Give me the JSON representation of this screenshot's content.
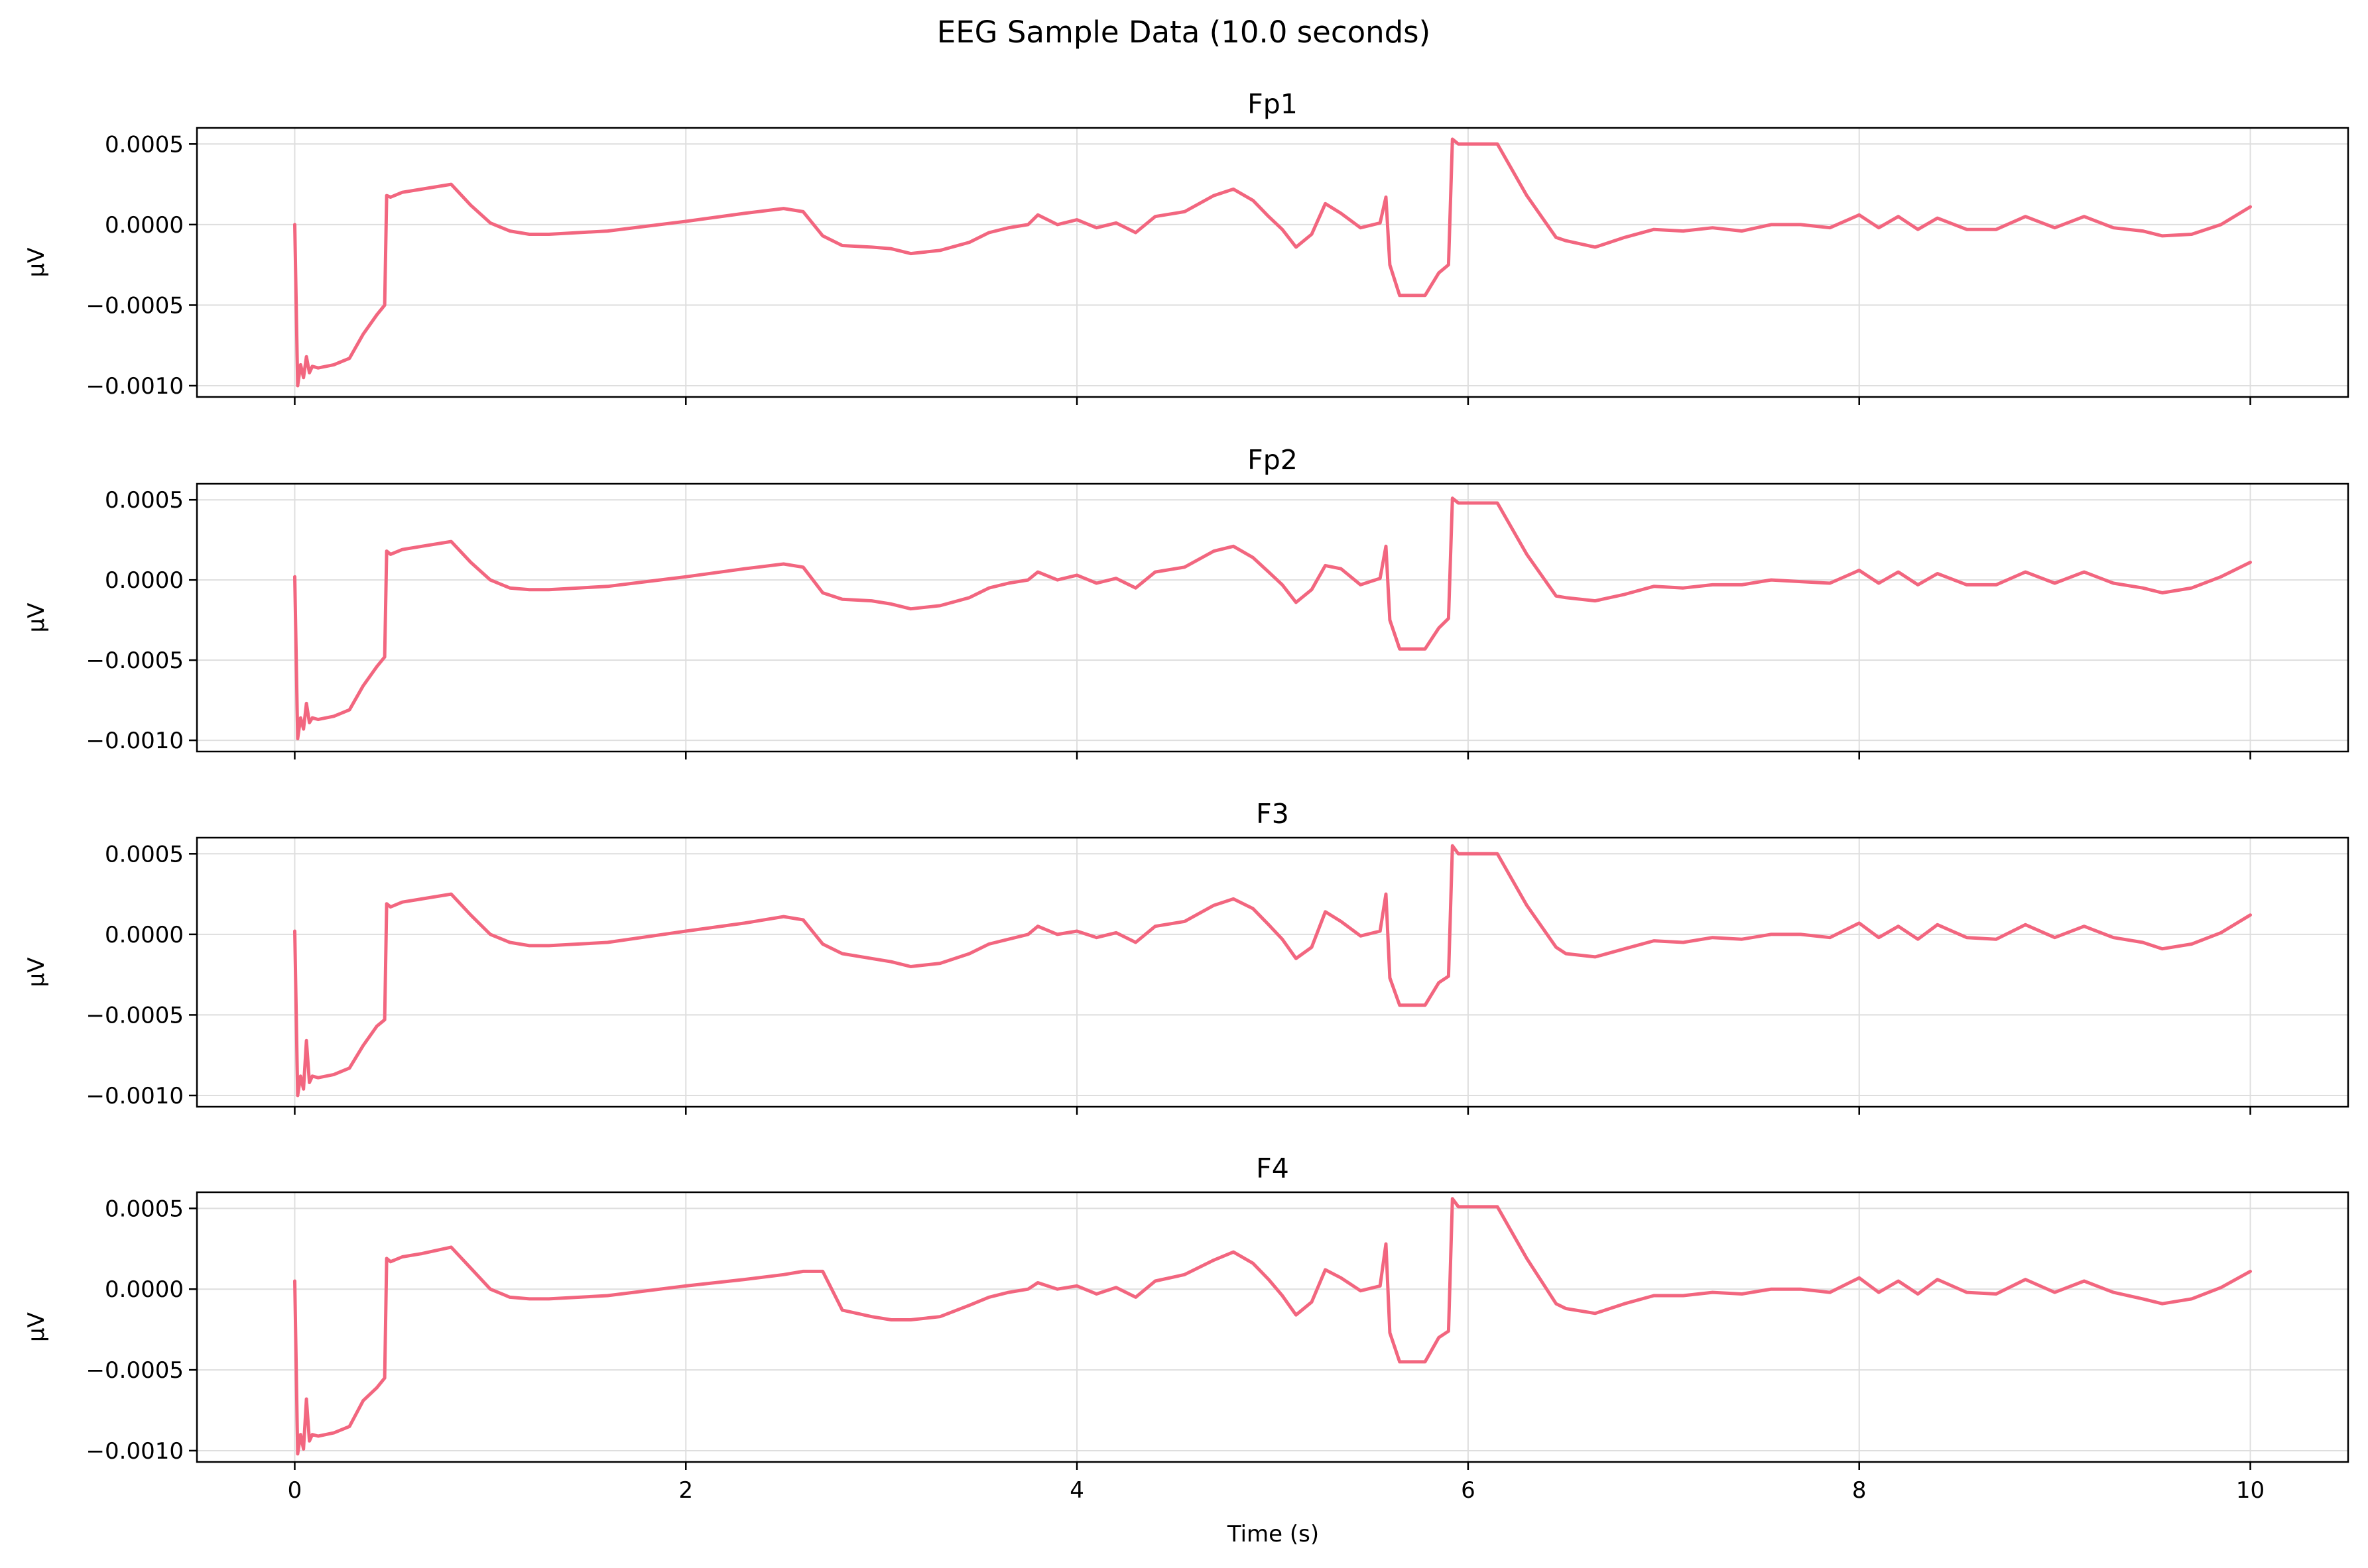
{
  "chart_data": {
    "type": "line",
    "title": "EEG Sample Data (10.0 seconds)",
    "xlabel": "Time (s)",
    "ylabel": "µV",
    "xlim": [
      -0.5,
      10.5
    ],
    "xticks": [
      0,
      2,
      4,
      6,
      8,
      10
    ],
    "ylim": [
      -0.00107,
      0.0006
    ],
    "yticks": [
      -0.001,
      -0.0005,
      0.0,
      0.0005
    ],
    "ytick_labels": [
      "−0.0010",
      "−0.0005",
      "0.0000",
      "0.0005"
    ],
    "grid": true,
    "line_color": "#f2667f",
    "series": [
      {
        "name": "Fp1",
        "x": [
          0,
          0.015,
          0.03,
          0.045,
          0.06,
          0.075,
          0.09,
          0.12,
          0.2,
          0.28,
          0.35,
          0.42,
          0.46,
          0.47,
          0.49,
          0.55,
          0.65,
          0.8,
          0.9,
          1.0,
          1.1,
          1.2,
          1.3,
          1.6,
          2.0,
          2.3,
          2.5,
          2.6,
          2.7,
          2.8,
          2.95,
          3.05,
          3.15,
          3.3,
          3.45,
          3.55,
          3.65,
          3.75,
          3.8,
          3.9,
          4.0,
          4.1,
          4.2,
          4.3,
          4.4,
          4.55,
          4.7,
          4.8,
          4.9,
          4.98,
          5.05,
          5.12,
          5.2,
          5.27,
          5.35,
          5.45,
          5.55,
          5.58,
          5.6,
          5.65,
          5.72,
          5.78,
          5.85,
          5.9,
          5.92,
          5.95,
          6.0,
          6.15,
          6.3,
          6.45,
          6.5,
          6.65,
          6.8,
          6.95,
          7.1,
          7.25,
          7.4,
          7.55,
          7.7,
          7.85,
          8.0,
          8.1,
          8.2,
          8.3,
          8.4,
          8.55,
          8.7,
          8.85,
          9.0,
          9.15,
          9.3,
          9.45,
          9.55,
          9.7,
          9.85,
          10.0
        ],
        "y": [
          0.0,
          -0.001,
          -0.00087,
          -0.00095,
          -0.00082,
          -0.00092,
          -0.00088,
          -0.00089,
          -0.00087,
          -0.00083,
          -0.00068,
          -0.00056,
          -0.0005,
          0.00018,
          0.00017,
          0.0002,
          0.00022,
          0.00025,
          0.00012,
          1e-05,
          -4e-05,
          -6e-05,
          -6e-05,
          -4e-05,
          2e-05,
          7e-05,
          0.0001,
          8e-05,
          -7e-05,
          -0.00013,
          -0.00014,
          -0.00015,
          -0.00018,
          -0.00016,
          -0.00011,
          -5e-05,
          -2e-05,
          0.0,
          6e-05,
          0.0,
          3e-05,
          -2e-05,
          1e-05,
          -5e-05,
          5e-05,
          8e-05,
          0.00018,
          0.00022,
          0.00015,
          5e-05,
          -3e-05,
          -0.00014,
          -6e-05,
          0.00013,
          7e-05,
          -2e-05,
          1e-05,
          0.00017,
          -0.00025,
          -0.00044,
          -0.00044,
          -0.00044,
          -0.0003,
          -0.00025,
          0.00053,
          0.0005,
          0.0005,
          0.0005,
          0.00018,
          -8e-05,
          -0.0001,
          -0.00014,
          -8e-05,
          -3e-05,
          -4e-05,
          -2e-05,
          -4e-05,
          0.0,
          0.0,
          -2e-05,
          6e-05,
          -2e-05,
          5e-05,
          -3e-05,
          4e-05,
          -3e-05,
          -3e-05,
          5e-05,
          -2e-05,
          5e-05,
          -2e-05,
          -4e-05,
          -7e-05,
          -6e-05,
          0.0,
          0.00011
        ]
      },
      {
        "name": "Fp2",
        "x": [
          0,
          0.015,
          0.03,
          0.045,
          0.06,
          0.075,
          0.09,
          0.12,
          0.2,
          0.28,
          0.35,
          0.42,
          0.46,
          0.47,
          0.49,
          0.55,
          0.65,
          0.8,
          0.9,
          1.0,
          1.1,
          1.2,
          1.3,
          1.6,
          2.0,
          2.3,
          2.5,
          2.6,
          2.7,
          2.8,
          2.95,
          3.05,
          3.15,
          3.3,
          3.45,
          3.55,
          3.65,
          3.75,
          3.8,
          3.9,
          4.0,
          4.1,
          4.2,
          4.3,
          4.4,
          4.55,
          4.7,
          4.8,
          4.9,
          4.98,
          5.05,
          5.12,
          5.2,
          5.27,
          5.35,
          5.45,
          5.55,
          5.58,
          5.6,
          5.65,
          5.72,
          5.78,
          5.85,
          5.9,
          5.92,
          5.95,
          6.0,
          6.15,
          6.3,
          6.45,
          6.5,
          6.65,
          6.8,
          6.95,
          7.1,
          7.25,
          7.4,
          7.55,
          7.7,
          7.85,
          8.0,
          8.1,
          8.2,
          8.3,
          8.4,
          8.55,
          8.7,
          8.85,
          9.0,
          9.15,
          9.3,
          9.45,
          9.55,
          9.7,
          9.85,
          10.0
        ],
        "y": [
          2e-05,
          -0.00099,
          -0.00086,
          -0.00093,
          -0.00077,
          -0.00089,
          -0.00086,
          -0.00087,
          -0.00085,
          -0.00081,
          -0.00066,
          -0.00054,
          -0.00048,
          0.00018,
          0.00016,
          0.00019,
          0.00021,
          0.00024,
          0.00011,
          0.0,
          -5e-05,
          -6e-05,
          -6e-05,
          -4e-05,
          2e-05,
          7e-05,
          0.0001,
          8e-05,
          -8e-05,
          -0.00012,
          -0.00013,
          -0.00015,
          -0.00018,
          -0.00016,
          -0.00011,
          -5e-05,
          -2e-05,
          0.0,
          5e-05,
          0.0,
          3e-05,
          -2e-05,
          1e-05,
          -5e-05,
          5e-05,
          8e-05,
          0.00018,
          0.00021,
          0.00014,
          5e-05,
          -3e-05,
          -0.00014,
          -6e-05,
          9e-05,
          7e-05,
          -3e-05,
          1e-05,
          0.00021,
          -0.00025,
          -0.00043,
          -0.00043,
          -0.00043,
          -0.0003,
          -0.00024,
          0.00051,
          0.00048,
          0.00048,
          0.00048,
          0.00016,
          -0.0001,
          -0.00011,
          -0.00013,
          -9e-05,
          -4e-05,
          -5e-05,
          -3e-05,
          -3e-05,
          0.0,
          -1e-05,
          -2e-05,
          6e-05,
          -2e-05,
          5e-05,
          -3e-05,
          4e-05,
          -3e-05,
          -3e-05,
          5e-05,
          -2e-05,
          5e-05,
          -2e-05,
          -5e-05,
          -8e-05,
          -5e-05,
          2e-05,
          0.00011
        ]
      },
      {
        "name": "F3",
        "x": [
          0,
          0.015,
          0.03,
          0.045,
          0.06,
          0.075,
          0.09,
          0.12,
          0.2,
          0.28,
          0.35,
          0.42,
          0.46,
          0.47,
          0.49,
          0.55,
          0.65,
          0.8,
          0.9,
          1.0,
          1.1,
          1.2,
          1.3,
          1.6,
          2.0,
          2.3,
          2.5,
          2.6,
          2.7,
          2.8,
          2.95,
          3.05,
          3.15,
          3.3,
          3.45,
          3.55,
          3.65,
          3.75,
          3.8,
          3.9,
          4.0,
          4.1,
          4.2,
          4.3,
          4.4,
          4.55,
          4.7,
          4.8,
          4.9,
          4.98,
          5.05,
          5.12,
          5.2,
          5.27,
          5.35,
          5.45,
          5.55,
          5.58,
          5.6,
          5.65,
          5.72,
          5.78,
          5.85,
          5.9,
          5.92,
          5.95,
          6.0,
          6.15,
          6.3,
          6.45,
          6.5,
          6.65,
          6.8,
          6.95,
          7.1,
          7.25,
          7.4,
          7.55,
          7.7,
          7.85,
          8.0,
          8.1,
          8.2,
          8.3,
          8.4,
          8.55,
          8.7,
          8.85,
          9.0,
          9.15,
          9.3,
          9.45,
          9.55,
          9.7,
          9.85,
          10.0
        ],
        "y": [
          2e-05,
          -0.001,
          -0.00088,
          -0.00096,
          -0.00066,
          -0.00092,
          -0.00088,
          -0.00089,
          -0.00087,
          -0.00083,
          -0.00069,
          -0.00057,
          -0.00053,
          0.00019,
          0.00017,
          0.0002,
          0.00022,
          0.00025,
          0.00012,
          0.0,
          -5e-05,
          -7e-05,
          -7e-05,
          -5e-05,
          2e-05,
          7e-05,
          0.00011,
          9e-05,
          -6e-05,
          -0.00012,
          -0.00015,
          -0.00017,
          -0.0002,
          -0.00018,
          -0.00012,
          -6e-05,
          -3e-05,
          0.0,
          5e-05,
          0.0,
          2e-05,
          -2e-05,
          1e-05,
          -5e-05,
          5e-05,
          8e-05,
          0.00018,
          0.00022,
          0.00016,
          6e-05,
          -3e-05,
          -0.00015,
          -8e-05,
          0.00014,
          8e-05,
          -1e-05,
          2e-05,
          0.00025,
          -0.00027,
          -0.00044,
          -0.00044,
          -0.00044,
          -0.0003,
          -0.00026,
          0.00055,
          0.0005,
          0.0005,
          0.0005,
          0.00018,
          -8e-05,
          -0.00012,
          -0.00014,
          -9e-05,
          -4e-05,
          -5e-05,
          -2e-05,
          -3e-05,
          0.0,
          0.0,
          -2e-05,
          7e-05,
          -2e-05,
          5e-05,
          -3e-05,
          6e-05,
          -2e-05,
          -3e-05,
          6e-05,
          -2e-05,
          5e-05,
          -2e-05,
          -5e-05,
          -9e-05,
          -6e-05,
          1e-05,
          0.00012
        ]
      },
      {
        "name": "F4",
        "x": [
          0,
          0.015,
          0.03,
          0.045,
          0.06,
          0.075,
          0.09,
          0.12,
          0.2,
          0.28,
          0.35,
          0.42,
          0.46,
          0.47,
          0.49,
          0.55,
          0.65,
          0.8,
          0.9,
          1.0,
          1.1,
          1.2,
          1.3,
          1.6,
          2.0,
          2.3,
          2.5,
          2.6,
          2.7,
          2.8,
          2.95,
          3.05,
          3.15,
          3.3,
          3.45,
          3.55,
          3.65,
          3.75,
          3.8,
          3.9,
          4.0,
          4.1,
          4.2,
          4.3,
          4.4,
          4.55,
          4.7,
          4.8,
          4.9,
          4.98,
          5.05,
          5.12,
          5.2,
          5.27,
          5.35,
          5.45,
          5.55,
          5.58,
          5.6,
          5.65,
          5.72,
          5.78,
          5.85,
          5.9,
          5.92,
          5.95,
          6.0,
          6.15,
          6.3,
          6.45,
          6.5,
          6.65,
          6.8,
          6.95,
          7.1,
          7.25,
          7.4,
          7.55,
          7.7,
          7.85,
          8.0,
          8.1,
          8.2,
          8.3,
          8.4,
          8.55,
          8.7,
          8.85,
          9.0,
          9.15,
          9.3,
          9.45,
          9.55,
          9.7,
          9.85,
          10.0
        ],
        "y": [
          5e-05,
          -0.00102,
          -0.0009,
          -0.00099,
          -0.00068,
          -0.00094,
          -0.0009,
          -0.00091,
          -0.00089,
          -0.00085,
          -0.00069,
          -0.00061,
          -0.00055,
          0.00019,
          0.00017,
          0.0002,
          0.00022,
          0.00026,
          0.00013,
          0.0,
          -5e-05,
          -6e-05,
          -6e-05,
          -4e-05,
          2e-05,
          6e-05,
          9e-05,
          0.00011,
          0.00011,
          -0.00013,
          -0.00017,
          -0.00019,
          -0.00019,
          -0.00017,
          -0.0001,
          -5e-05,
          -2e-05,
          0.0,
          4e-05,
          0.0,
          2e-05,
          -3e-05,
          1e-05,
          -5e-05,
          5e-05,
          9e-05,
          0.00018,
          0.00023,
          0.00016,
          6e-05,
          -4e-05,
          -0.00016,
          -8e-05,
          0.00012,
          7e-05,
          -1e-05,
          2e-05,
          0.00028,
          -0.00027,
          -0.00045,
          -0.00045,
          -0.00045,
          -0.0003,
          -0.00026,
          0.00056,
          0.00051,
          0.00051,
          0.00051,
          0.00019,
          -9e-05,
          -0.00012,
          -0.00015,
          -9e-05,
          -4e-05,
          -4e-05,
          -2e-05,
          -3e-05,
          0.0,
          0.0,
          -2e-05,
          7e-05,
          -2e-05,
          5e-05,
          -3e-05,
          6e-05,
          -2e-05,
          -3e-05,
          6e-05,
          -2e-05,
          5e-05,
          -2e-05,
          -6e-05,
          -9e-05,
          -6e-05,
          1e-05,
          0.00011
        ]
      }
    ]
  }
}
